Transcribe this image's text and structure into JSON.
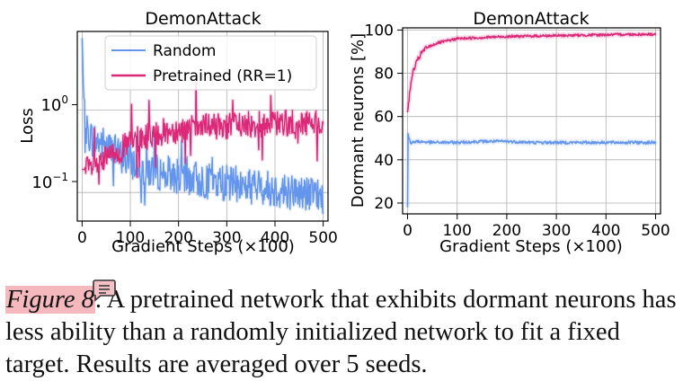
{
  "colors": {
    "random": "#6495ed",
    "pretrained": "#dc2878",
    "highlight": "#f4b8bd"
  },
  "chart_data": [
    {
      "type": "line",
      "title": "DemonAttack",
      "xlabel": "Gradient Steps (×100)",
      "ylabel": "Loss",
      "yscale": "log",
      "xlim": [
        -10,
        510
      ],
      "ylim": [
        0.045,
        9
      ],
      "xticks": [
        "0",
        "100",
        "200",
        "300",
        "400",
        "500"
      ],
      "yticks": [
        "10^0",
        "10^-1"
      ],
      "grid": true,
      "legend": "top-right",
      "series": [
        {
          "name": "Random",
          "x": [
            0,
            2,
            5,
            10,
            20,
            30,
            40,
            50,
            60,
            80,
            100,
            120,
            150,
            200,
            250,
            300,
            350,
            400,
            450,
            500
          ],
          "values": [
            7.5,
            2.2,
            0.8,
            0.55,
            0.45,
            0.42,
            0.4,
            0.36,
            0.33,
            0.28,
            0.24,
            0.2,
            0.18,
            0.16,
            0.14,
            0.13,
            0.12,
            0.11,
            0.1,
            0.09
          ]
        },
        {
          "name": "Pretrained (RR=1)",
          "x": [
            0,
            10,
            20,
            40,
            60,
            80,
            100,
            120,
            150,
            200,
            250,
            300,
            350,
            400,
            450,
            500
          ],
          "values": [
            0.19,
            0.19,
            0.2,
            0.23,
            0.28,
            0.33,
            0.4,
            0.45,
            0.52,
            0.58,
            0.62,
            0.65,
            0.67,
            0.69,
            0.7,
            0.72
          ]
        }
      ]
    },
    {
      "type": "line",
      "title": "DemonAttack",
      "xlabel": "Gradient Steps (×100)",
      "ylabel": "Dormant neurons [%]",
      "xlim": [
        -10,
        510
      ],
      "ylim": [
        15,
        101
      ],
      "xticks": [
        "0",
        "100",
        "200",
        "300",
        "400",
        "500"
      ],
      "yticks": [
        "20",
        "40",
        "60",
        "80",
        "100"
      ],
      "grid": true,
      "series": [
        {
          "name": "Random",
          "x": [
            0,
            1,
            3,
            6,
            10,
            20,
            50,
            100,
            150,
            200,
            250,
            300,
            350,
            400,
            450,
            500
          ],
          "values": [
            18,
            52,
            50,
            48,
            48,
            48.5,
            48,
            48,
            48.5,
            48.5,
            48,
            48,
            48,
            48,
            48,
            48
          ]
        },
        {
          "name": "Pretrained (RR=1)",
          "x": [
            0,
            5,
            10,
            20,
            30,
            40,
            60,
            80,
            100,
            150,
            200,
            250,
            300,
            350,
            400,
            450,
            500
          ],
          "values": [
            62,
            72,
            80,
            86,
            90,
            92,
            94,
            95,
            96,
            96.5,
            97,
            97.2,
            97.4,
            97.6,
            97.8,
            98,
            98
          ]
        }
      ]
    }
  ],
  "caption": {
    "label": "Figure 8",
    "text": ". A pretrained network that exhibits dormant neurons has less ability than a randomly initialized network to fit a fixed target. Results are averaged over 5 seeds."
  }
}
